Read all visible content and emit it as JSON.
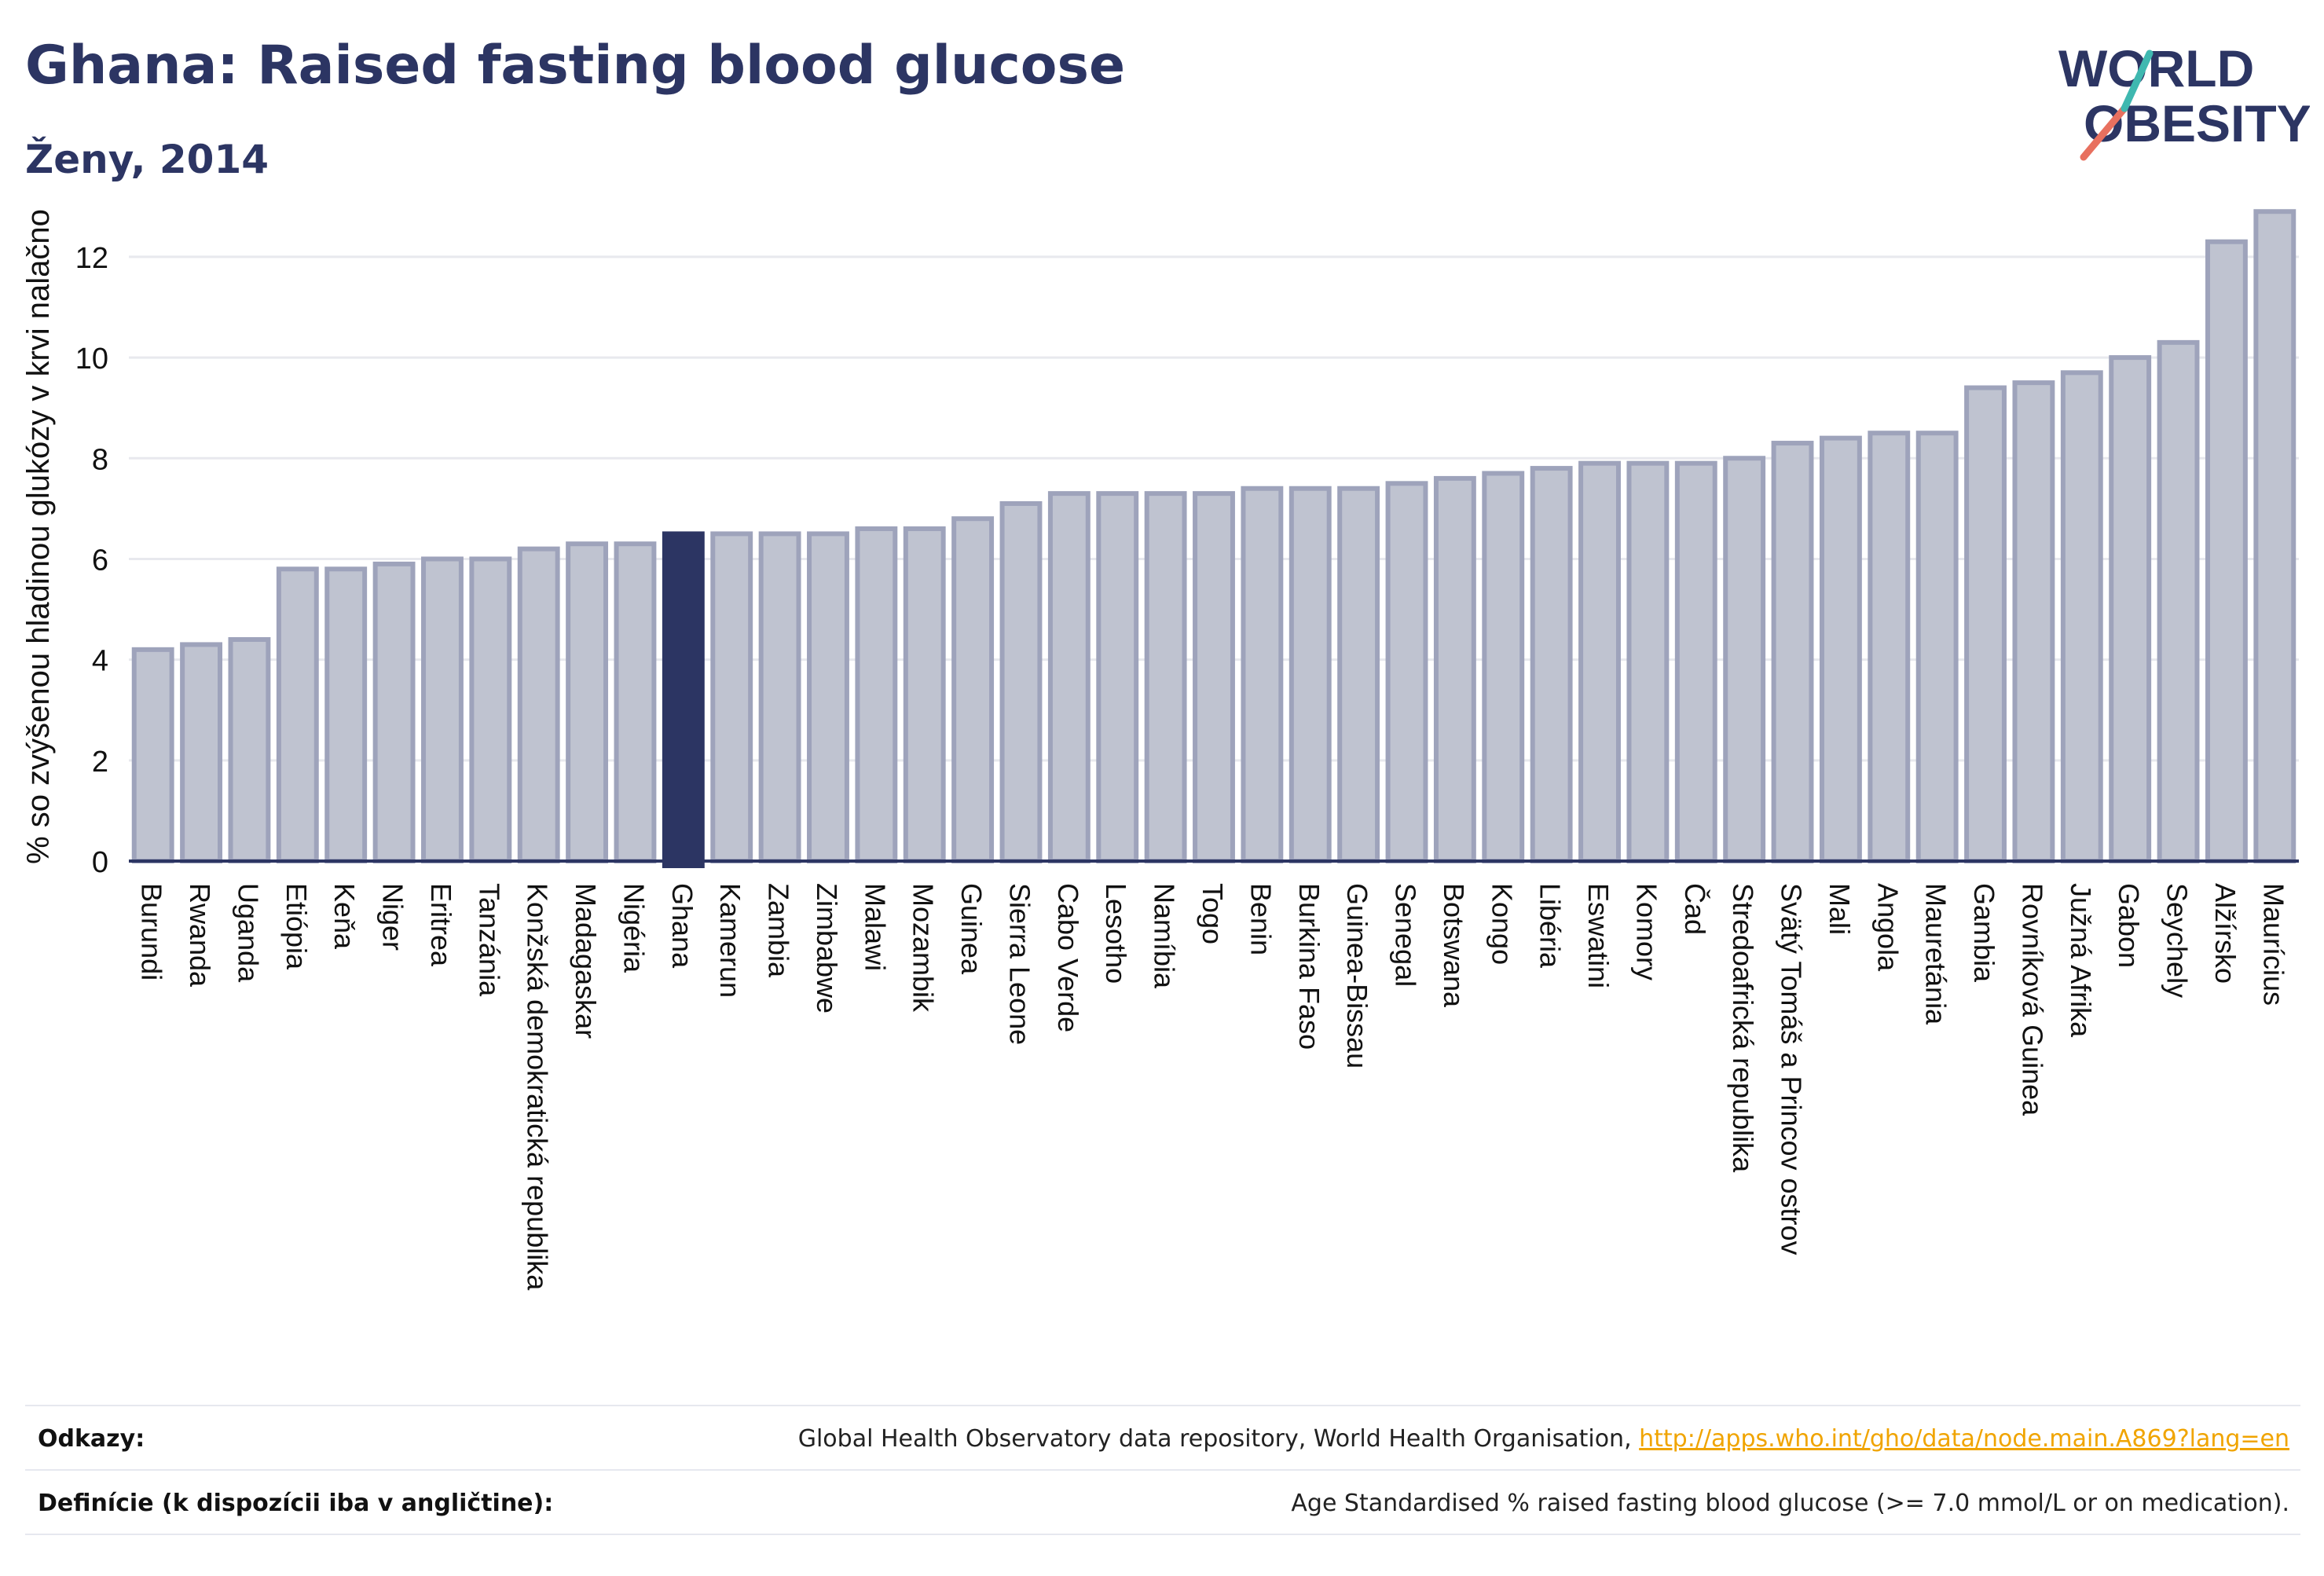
{
  "header": {
    "title": "Ghana: Raised fasting blood glucose",
    "subtitle": "Ženy, 2014"
  },
  "logo": {
    "line1": "WORLD",
    "line2": "OBESITY"
  },
  "chart_data": {
    "type": "bar",
    "title": "Ghana: Raised fasting blood glucose",
    "subtitle": "Ženy, 2014",
    "ylabel": "% so zvýšenou hladinou glukózy v krvi nalačno",
    "xlabel": "",
    "ylim": [
      0,
      13.2
    ],
    "yticks": [
      0,
      2,
      4,
      6,
      8,
      10,
      12
    ],
    "grid": true,
    "highlight": "Ghana",
    "colors": {
      "bar": "#bfc3d0",
      "bar_border": "#9ea3bb",
      "highlight": "#2c3563",
      "grid": "#e8e9ee"
    },
    "categories": [
      "Burundi",
      "Rwanda",
      "Uganda",
      "Etiópia",
      "Keňa",
      "Niger",
      "Eritrea",
      "Tanzánia",
      "Konžská demokratická republika",
      "Madagaskar",
      "Nigéria",
      "Ghana",
      "Kamerun",
      "Zambia",
      "Zimbabwe",
      "Malawi",
      "Mozambik",
      "Guinea",
      "Sierra Leone",
      "Cabo Verde",
      "Lesotho",
      "Namíbia",
      "Togo",
      "Benin",
      "Burkina Faso",
      "Guinea-Bissau",
      "Senegal",
      "Botswana",
      "Kongo",
      "Libéria",
      "Eswatini",
      "Komory",
      "Čad",
      "Stredoafrická republika",
      "Svätý Tomáš a Princov ostrov",
      "Mali",
      "Angola",
      "Mauretánia",
      "Gambia",
      "Rovníková Guinea",
      "Južná Afrika",
      "Gabon",
      "Seychely",
      "Alžírsko",
      "Maurícius"
    ],
    "values": [
      4.2,
      4.3,
      4.4,
      5.8,
      5.8,
      5.9,
      6.0,
      6.0,
      6.2,
      6.3,
      6.3,
      6.5,
      6.5,
      6.5,
      6.5,
      6.6,
      6.6,
      6.8,
      7.1,
      7.3,
      7.3,
      7.3,
      7.3,
      7.4,
      7.4,
      7.4,
      7.5,
      7.6,
      7.7,
      7.8,
      7.9,
      7.9,
      7.9,
      8.0,
      8.3,
      8.4,
      8.5,
      8.5,
      9.4,
      9.5,
      9.7,
      10.0,
      10.3,
      12.3,
      12.9
    ]
  },
  "footer": {
    "references_label": "Odkazy:",
    "references_text": "Global Health Observatory data repository, World Health Organisation, ",
    "references_link": "http://apps.who.int/gho/data/node.main.A869?lang=en",
    "definitions_label": "Definície (k dispozícii iba v angličtine):",
    "definitions_text": "Age Standardised % raised fasting blood glucose (>= 7.0 mmol/L or on medication)."
  }
}
